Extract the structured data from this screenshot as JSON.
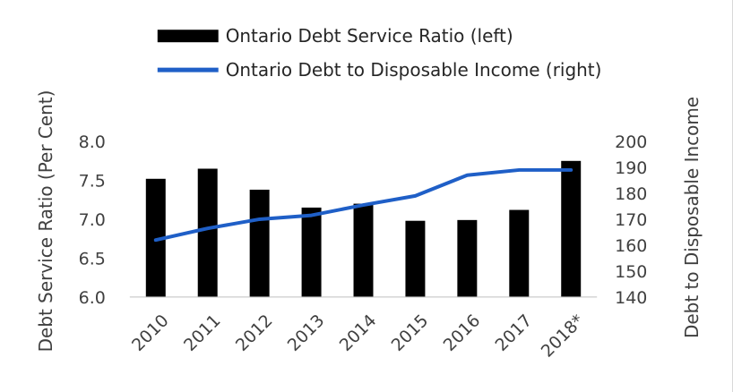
{
  "chart_data": {
    "type": "bar",
    "categories": [
      "2010",
      "2011",
      "2012",
      "2013",
      "2014",
      "2015",
      "2016",
      "2017",
      "2018*"
    ],
    "series": [
      {
        "name": "Ontario Debt Service Ratio (left)",
        "type": "bar",
        "axis": "left",
        "color": "#000000",
        "values": [
          7.52,
          7.65,
          7.38,
          7.15,
          7.2,
          6.98,
          6.99,
          7.12,
          7.75
        ]
      },
      {
        "name": "Ontario Debt to Disposable Income (right)",
        "type": "line",
        "axis": "right",
        "color": "#1F5FC7",
        "values": [
          162,
          166.5,
          170,
          171.5,
          175.5,
          179,
          187,
          189,
          189
        ]
      }
    ],
    "ylabel": "Debt Service Ratio (Per Cent)",
    "y2label": "Debt to Disposable Income",
    "ylim": [
      6.0,
      8.0
    ],
    "yticks": [
      "6.0",
      "6.5",
      "7.0",
      "7.5",
      "8.0"
    ],
    "y2lim": [
      140,
      200
    ],
    "y2ticks": [
      "140",
      "150",
      "160",
      "170",
      "180",
      "190",
      "200"
    ],
    "grid": false,
    "legend": "top"
  }
}
